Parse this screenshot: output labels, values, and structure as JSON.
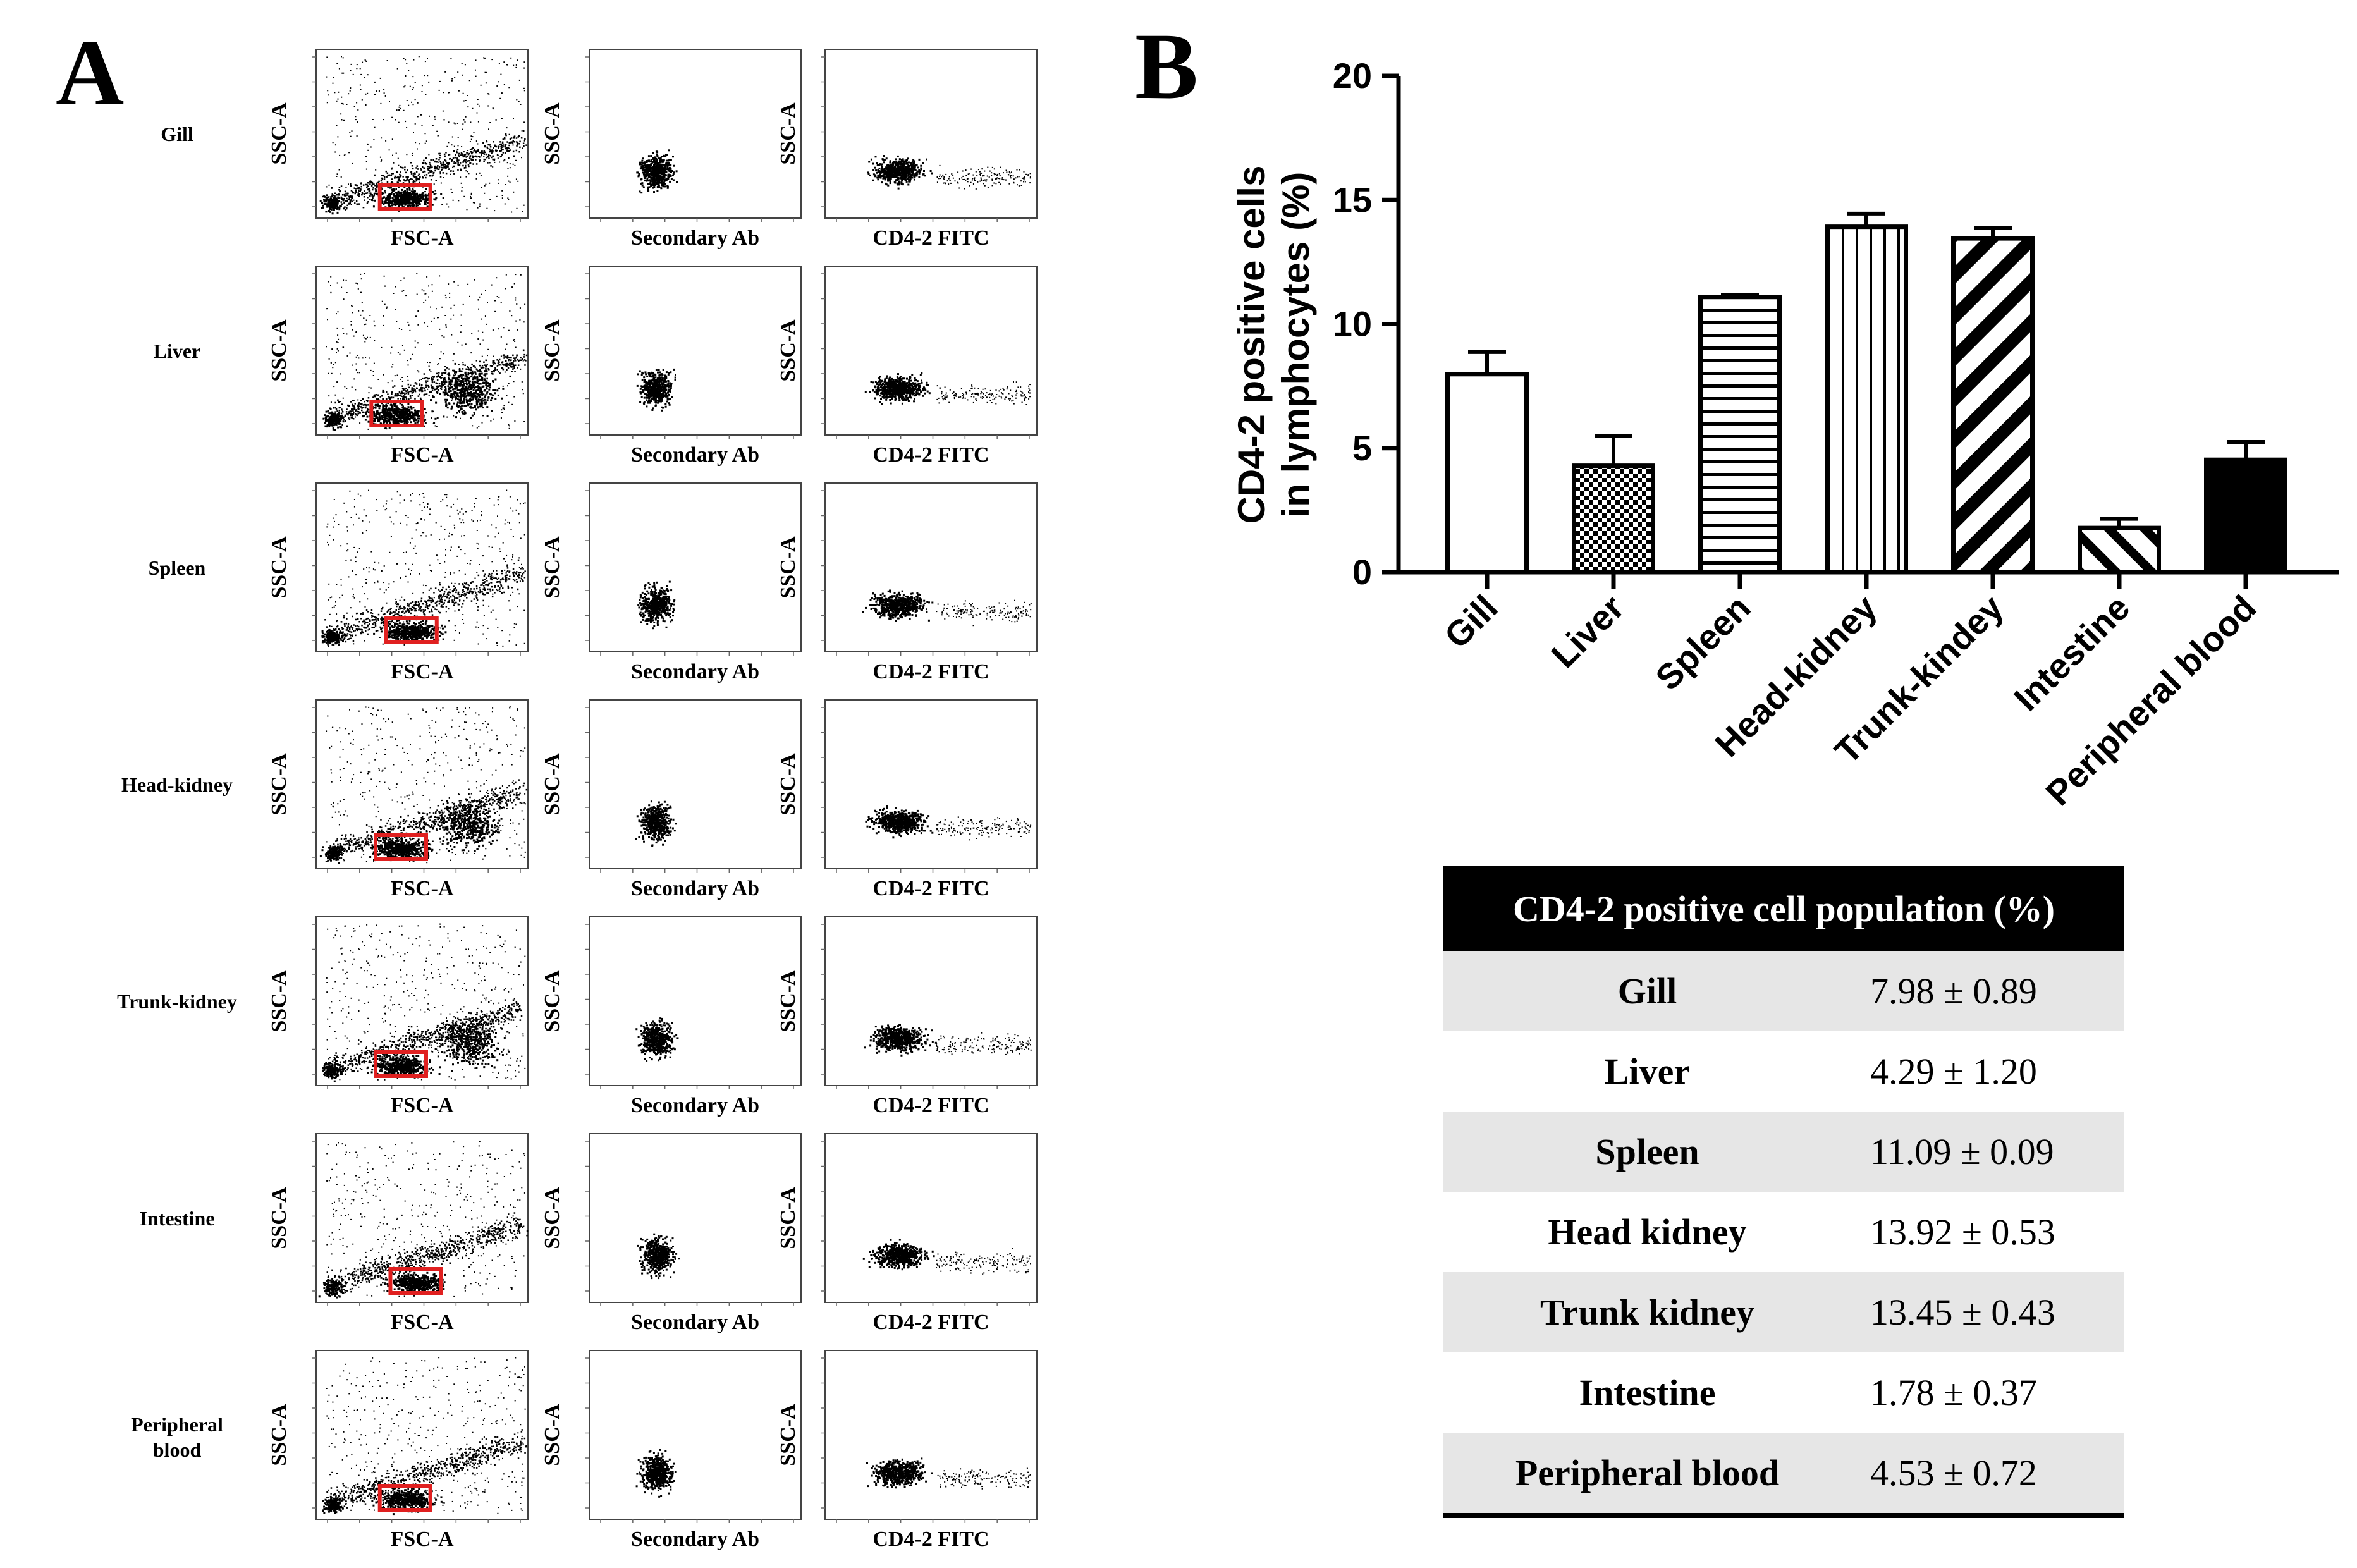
{
  "panel_labels": {
    "a": "A",
    "b": "B"
  },
  "flow": {
    "rows": [
      {
        "tissue": "Gill",
        "gate_pos": 0.42
      },
      {
        "tissue": "Liver",
        "gate_pos": 0.38
      },
      {
        "tissue": "Spleen",
        "gate_pos": 0.45
      },
      {
        "tissue": "Head-kidney",
        "gate_pos": 0.4
      },
      {
        "tissue": "Trunk-kidney",
        "gate_pos": 0.4
      },
      {
        "tissue": "Intestine",
        "gate_pos": 0.47
      },
      {
        "tissue": "Peripheral blood",
        "gate_pos": 0.42
      }
    ],
    "col_labels": {
      "x": [
        "FSC-A",
        "Secondary Ab",
        "CD4-2 FITC"
      ],
      "y": "SSC-A"
    }
  },
  "chart_data": {
    "type": "bar",
    "categories": [
      "Gill",
      "Liver",
      "Spleen",
      "Head-kidney",
      "Trunk-kindey",
      "Intestine",
      "Peripheral blood"
    ],
    "values": [
      7.98,
      4.29,
      11.09,
      13.92,
      13.45,
      1.78,
      4.53
    ],
    "errors": [
      0.89,
      1.2,
      0.09,
      0.53,
      0.43,
      0.37,
      0.72
    ],
    "patterns": [
      "none",
      "checker",
      "hlines",
      "vlines",
      "diag-thick",
      "diag-thin",
      "solid"
    ],
    "ylabel_lines": [
      "CD4-2 positive cells",
      "in lymphocytes (%)"
    ],
    "ylim": [
      0,
      20
    ],
    "yticks": [
      "0",
      "5",
      "10",
      "15",
      "20"
    ]
  },
  "table": {
    "header": "CD4-2 positive cell population (%)",
    "rows": [
      {
        "tissue": "Gill",
        "value": "7.98 ± 0.89"
      },
      {
        "tissue": "Liver",
        "value": "4.29 ± 1.20"
      },
      {
        "tissue": "Spleen",
        "value": "11.09 ± 0.09"
      },
      {
        "tissue": "Head kidney",
        "value": "13.92 ± 0.53"
      },
      {
        "tissue": "Trunk kidney",
        "value": "13.45 ± 0.43"
      },
      {
        "tissue": "Intestine",
        "value": "1.78 ± 0.37"
      },
      {
        "tissue": "Peripheral blood",
        "value": "4.53 ± 0.72"
      }
    ]
  },
  "colors": {
    "gate": "#e02020",
    "ink": "#000000",
    "table_header_bg": "#000000",
    "table_row_alt": "#e6e6e6"
  }
}
